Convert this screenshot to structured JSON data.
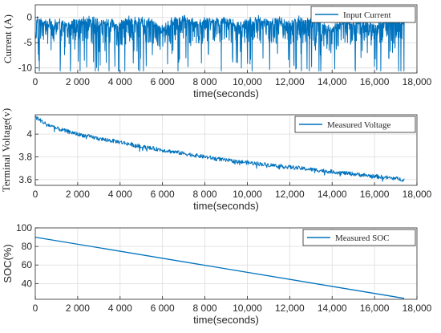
{
  "figure": {
    "line_color": "#0072BD",
    "grid_color": "#dcdcdc",
    "axis_color": "#262626"
  },
  "chart_data": [
    {
      "type": "line",
      "xlabel": "time(seconds)",
      "ylabel": "Current (A)",
      "xlim": [
        0,
        18000
      ],
      "ylim": [
        -11,
        2.5
      ],
      "x_ticks": [
        0,
        2000,
        4000,
        6000,
        8000,
        10000,
        12000,
        14000,
        16000,
        18000
      ],
      "x_tick_labels": [
        "0",
        "2 000",
        "4 000",
        "6 000",
        "8 000",
        "10,000",
        "12,000",
        "14,000",
        "16,000",
        "18,000"
      ],
      "y_ticks": [
        -10,
        -5,
        0
      ],
      "y_tick_labels": [
        "-10",
        "-5",
        "0"
      ],
      "grid": true,
      "legend_position": "top-right",
      "series": [
        {
          "name": "Input Current",
          "x": [
            0,
            500,
            1000,
            1500,
            2000,
            2500,
            3000,
            3500,
            4000,
            4500,
            5000,
            5500,
            6000,
            6500,
            7000,
            7500,
            8000,
            8500,
            9000,
            9500,
            10000,
            10500,
            11000,
            11500,
            12000,
            12500,
            13000,
            13500,
            14000,
            14500,
            15000,
            15500,
            16000,
            16500,
            17000,
            17400
          ],
          "y": [
            -1,
            -3,
            -2,
            -6,
            -2,
            -1,
            -3,
            -2,
            -5,
            -1,
            -2,
            -3,
            -9,
            -2,
            -1,
            -4,
            -2,
            -3,
            -1,
            -6,
            -2,
            -1,
            -3,
            -2,
            -5,
            -1,
            -2,
            -4,
            -10,
            -2,
            -3,
            -1,
            -6,
            -2,
            -3,
            -1
          ]
        }
      ]
    },
    {
      "type": "line",
      "xlabel": "time(seconds)",
      "ylabel": "Terminal Voltage(v)",
      "xlim": [
        0,
        18000
      ],
      "ylim": [
        3.55,
        4.17
      ],
      "x_ticks": [
        0,
        2000,
        4000,
        6000,
        8000,
        10000,
        12000,
        14000,
        16000,
        18000
      ],
      "x_tick_labels": [
        "0",
        "2 000",
        "4 000",
        "6 000",
        "8 000",
        "10,000",
        "12,000",
        "14,000",
        "16,000",
        "18,000"
      ],
      "y_ticks": [
        3.6,
        3.8,
        4
      ],
      "y_tick_labels": [
        "3.6",
        "3.8",
        "4"
      ],
      "grid": true,
      "legend_position": "top-right",
      "series": [
        {
          "name": "Measured Voltage",
          "x": [
            0,
            500,
            1000,
            2000,
            3000,
            4000,
            5000,
            6000,
            7000,
            8000,
            9000,
            10000,
            11000,
            12000,
            13000,
            14000,
            15000,
            16000,
            17000,
            17400
          ],
          "y": [
            4.15,
            4.09,
            4.05,
            4.0,
            3.96,
            3.93,
            3.89,
            3.86,
            3.83,
            3.8,
            3.77,
            3.75,
            3.73,
            3.71,
            3.69,
            3.67,
            3.65,
            3.63,
            3.61,
            3.6
          ]
        }
      ]
    },
    {
      "type": "line",
      "xlabel": "time(seconds)",
      "ylabel": "SOC(%)",
      "xlim": [
        0,
        18000
      ],
      "ylim": [
        23,
        100
      ],
      "x_ticks": [
        0,
        2000,
        4000,
        6000,
        8000,
        10000,
        12000,
        14000,
        16000,
        18000
      ],
      "x_tick_labels": [
        "0",
        "2 000",
        "4 000",
        "6 000",
        "8 000",
        "10,000",
        "12,000",
        "14,000",
        "16,000",
        "18,000"
      ],
      "y_ticks": [
        40,
        60,
        80,
        100
      ],
      "y_tick_labels": [
        "40",
        "60",
        "80",
        "100"
      ],
      "grid": true,
      "legend_position": "top-right",
      "series": [
        {
          "name": "Measured SOC",
          "x": [
            0,
            17400
          ],
          "y": [
            90,
            24
          ]
        }
      ]
    }
  ]
}
